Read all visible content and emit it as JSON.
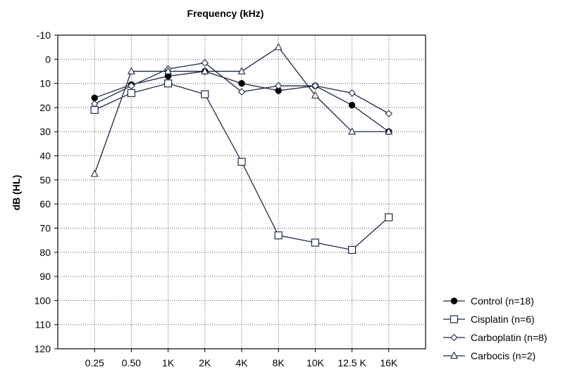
{
  "chart_data": {
    "type": "line",
    "title": "Frequency (kHz)",
    "xlabel": "",
    "ylabel": "dB (HL)",
    "categories": [
      "0.25",
      "0.50",
      "1K",
      "2K",
      "4K",
      "8K",
      "10K",
      "12.5 K",
      "16K"
    ],
    "yticks": [
      -10,
      0,
      10,
      20,
      30,
      40,
      50,
      60,
      70,
      80,
      90,
      100,
      110,
      120
    ],
    "ylim": [
      -10,
      120
    ],
    "y_inverted": true,
    "grid": true,
    "legend_position": "bottom-right",
    "series": [
      {
        "name": "Control (n=18)",
        "marker": "filled-circle",
        "values": [
          16,
          10.5,
          7,
          5,
          10,
          13,
          11,
          19,
          30
        ]
      },
      {
        "name": "Cisplatin (n=6)",
        "marker": "open-square",
        "values": [
          21,
          14,
          10,
          14.5,
          42.5,
          73,
          76,
          79,
          65.5
        ]
      },
      {
        "name": "Carboplatin (n=8)",
        "marker": "open-diamond",
        "values": [
          18.5,
          11,
          4,
          1.5,
          13.5,
          11,
          11,
          14,
          22.5
        ]
      },
      {
        "name": "Carbocis (n=2)",
        "marker": "open-triangle",
        "values": [
          47.5,
          5,
          5,
          5,
          5,
          -5,
          15,
          30,
          30
        ]
      }
    ],
    "colors": {
      "line": "#1f2a44",
      "grid": "#555555",
      "axis": "#000000"
    }
  }
}
